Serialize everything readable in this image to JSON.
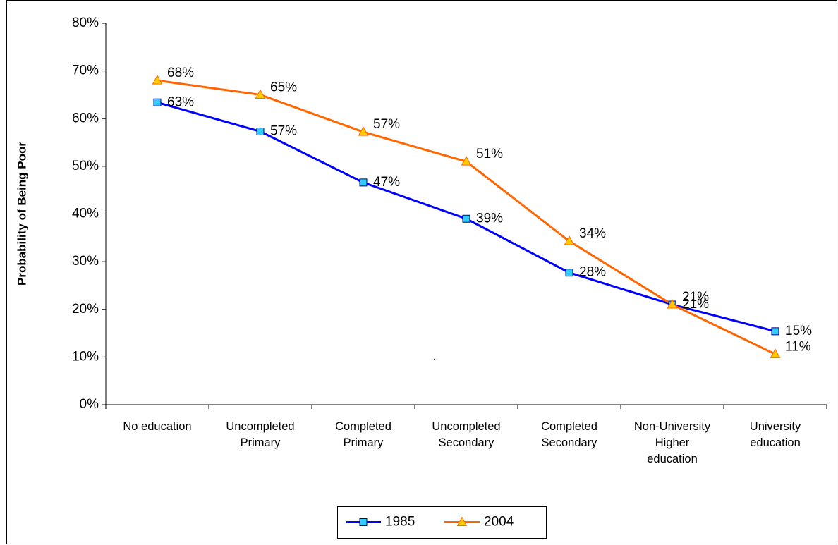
{
  "chart_data": {
    "type": "line",
    "y_axis_label": "Probability of Being Poor",
    "annotation": ".",
    "categories": [
      "No education",
      "Uncompleted Primary",
      "Completed Primary",
      "Uncompleted Secondary",
      "Completed Secondary",
      "Non-University Higher education",
      "University education"
    ],
    "series": [
      {
        "name": "1985",
        "color": "#0000ff",
        "marker": "square",
        "marker_color": "#33ccff",
        "values": [
          63.4,
          57.3,
          46.6,
          39,
          27.7,
          21,
          15.4
        ],
        "value_labels": [
          "63%",
          "57%",
          "47%",
          "39%",
          "28%",
          "21%",
          "15%"
        ]
      },
      {
        "name": "2004",
        "color": "#ff6600",
        "marker": "triangle",
        "marker_color": "#ffcc00",
        "values": [
          68,
          65,
          57.2,
          51,
          34.3,
          21,
          10.6
        ],
        "value_labels": [
          "68%",
          "65%",
          "57%",
          "51%",
          "34%",
          "21%",
          "11%"
        ]
      }
    ],
    "ylim": [
      0,
      80
    ],
    "yticks": [
      {
        "value": 0,
        "label": "0%"
      },
      {
        "value": 10,
        "label": "10%"
      },
      {
        "value": 20,
        "label": "20%"
      },
      {
        "value": 30,
        "label": "30%"
      },
      {
        "value": 40,
        "label": "40%"
      },
      {
        "value": 50,
        "label": "50%"
      },
      {
        "value": 60,
        "label": "60%"
      },
      {
        "value": 70,
        "label": "70%"
      },
      {
        "value": 80,
        "label": "80%"
      }
    ],
    "grid": false,
    "legend": "bottom"
  }
}
